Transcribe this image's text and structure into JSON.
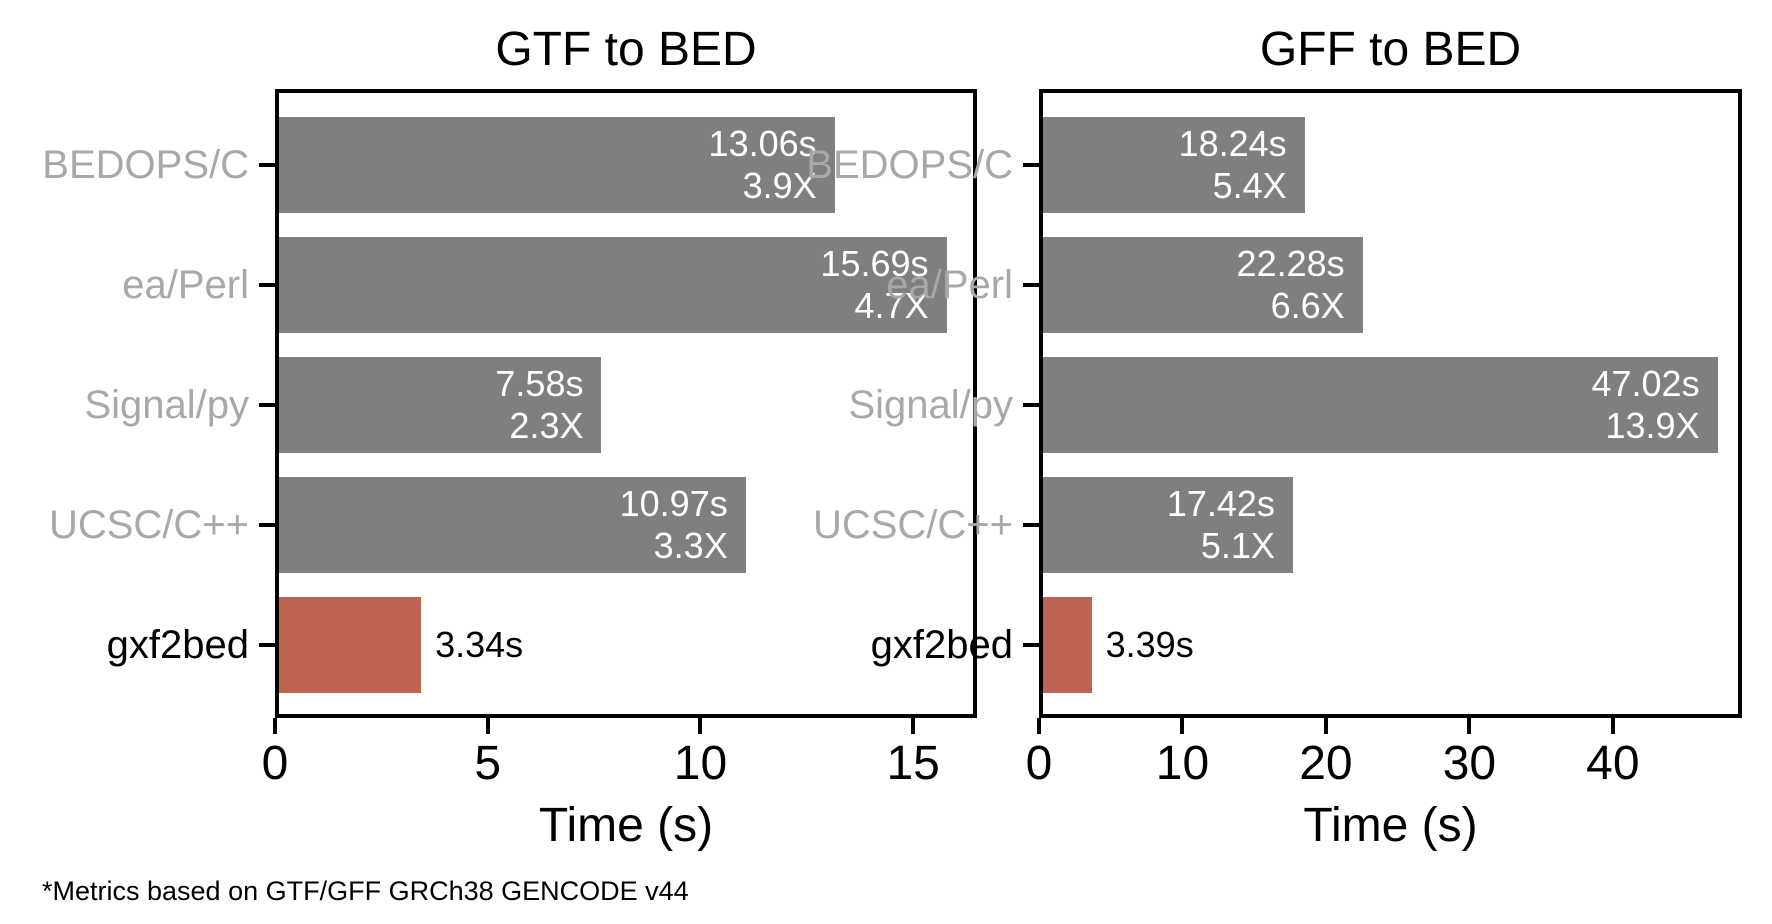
{
  "figure": {
    "footnote": "*Metrics based on GTF/GFF GRCh38 GENCODE v44"
  },
  "colors": {
    "bar_default": "#7f7f7f",
    "bar_highlight": "#bc6351",
    "category_label": "#a8a8a8",
    "highlight_category_label": "#000000",
    "bar_value_text": "#ffffff",
    "outside_value_text": "#000000",
    "axis": "#000000"
  },
  "chart_data": [
    {
      "type": "bar",
      "orientation": "horizontal",
      "title": "GTF to BED",
      "xlabel": "Time (s)",
      "categories": [
        "BEDOPS/C",
        "ea/Perl",
        "Signal/py",
        "UCSC/C++",
        "gxf2bed"
      ],
      "values": [
        13.06,
        15.69,
        7.58,
        10.97,
        3.34
      ],
      "time_labels": [
        "13.06s",
        "15.69s",
        "7.58s",
        "10.97s",
        "3.34s"
      ],
      "speedup_labels": [
        "3.9X",
        "4.7X",
        "2.3X",
        "3.3X",
        null
      ],
      "highlight_index": 4,
      "xticks": [
        0,
        5,
        10,
        15
      ],
      "xlim": [
        0,
        16.5
      ],
      "grid": false,
      "legend": null
    },
    {
      "type": "bar",
      "orientation": "horizontal",
      "title": "GFF to BED",
      "xlabel": "Time (s)",
      "categories": [
        "BEDOPS/C",
        "ea/Perl",
        "Signal/py",
        "UCSC/C++",
        "gxf2bed"
      ],
      "values": [
        18.24,
        22.28,
        47.02,
        17.42,
        3.39
      ],
      "time_labels": [
        "18.24s",
        "22.28s",
        "47.02s",
        "17.42s",
        "3.39s"
      ],
      "speedup_labels": [
        "5.4X",
        "6.6X",
        "13.9X",
        "5.1X",
        null
      ],
      "highlight_index": 4,
      "xticks": [
        0,
        10,
        20,
        30,
        40
      ],
      "xlim": [
        0,
        49
      ],
      "grid": false,
      "legend": null
    }
  ]
}
